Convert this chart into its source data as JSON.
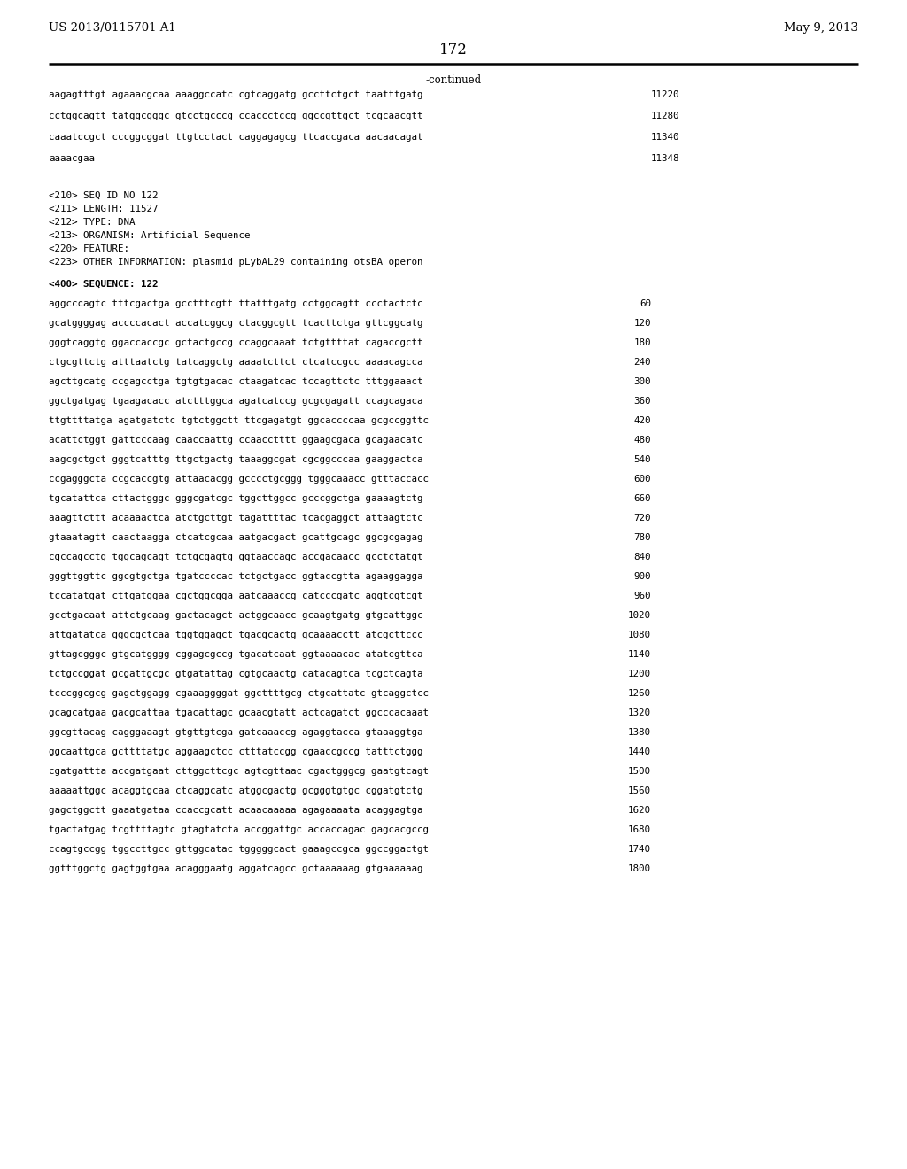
{
  "patent_number": "US 2013/0115701 A1",
  "date": "May 9, 2013",
  "page_number": "172",
  "continued_label": "-continued",
  "background_color": "#ffffff",
  "text_color": "#000000",
  "continued_lines": [
    [
      "aagagtttgt agaaacgcaa aaaggccatc cgtcaggatg gccttctgct taatttgatg",
      "11220"
    ],
    [
      "cctggcagtt tatggcgggc gtcctgcccg ccaccctccg ggccgttgct tcgcaacgtt",
      "11280"
    ],
    [
      "caaatccgct cccggcggat ttgtcctact caggagagcg ttcaccgaca aacaacagat",
      "11340"
    ],
    [
      "aaaacgaa",
      "11348"
    ]
  ],
  "metadata_lines": [
    "<210> SEQ ID NO 122",
    "<211> LENGTH: 11527",
    "<212> TYPE: DNA",
    "<213> ORGANISM: Artificial Sequence",
    "<220> FEATURE:",
    "<223> OTHER INFORMATION: plasmid pLybAL29 containing otsBA operon"
  ],
  "sequence_header": "<400> SEQUENCE: 122",
  "sequence_lines": [
    [
      "aggcccagtc tttcgactga gcctttcgtt ttatttgatg cctggcagtt ccctactctc",
      "60"
    ],
    [
      "gcatggggag accccacact accatcggcg ctacggcgtt tcacttctga gttcggcatg",
      "120"
    ],
    [
      "gggtcaggtg ggaccaccgc gctactgccg ccaggcaaat tctgttttat cagaccgctt",
      "180"
    ],
    [
      "ctgcgttctg atttaatctg tatcaggctg aaaatcttct ctcatccgcc aaaacagcca",
      "240"
    ],
    [
      "agcttgcatg ccgagcctga tgtgtgacac ctaagatcac tccagttctc tttggaaact",
      "300"
    ],
    [
      "ggctgatgag tgaagacacc atctttggca agatcatccg gcgcgagatt ccagcagaca",
      "360"
    ],
    [
      "ttgttttatga agatgatctc tgtctggctt ttcgagatgt ggcaccccaa gcgccggttc",
      "420"
    ],
    [
      "acattctggt gattcccaag caaccaattg ccaacctttt ggaagcgaca gcagaacatc",
      "480"
    ],
    [
      "aagcgctgct gggtcatttg ttgctgactg taaaggcgat cgcggcccaa gaaggactca",
      "540"
    ],
    [
      "ccgagggcta ccgcaccgtg attaacacgg gcccctgcggg tgggcaaacc gtttaccacc",
      "600"
    ],
    [
      "tgcatattca cttactgggc gggcgatcgc tggcttggcc gcccggctga gaaaagtctg",
      "660"
    ],
    [
      "aaagttcttt acaaaactca atctgcttgt tagattttac tcacgaggct attaagtctc",
      "720"
    ],
    [
      "gtaaatagtt caactaagga ctcatcgcaa aatgacgact gcattgcagc ggcgcgagag",
      "780"
    ],
    [
      "cgccagcctg tggcagcagt tctgcgagtg ggtaaccagc accgacaacc gcctctatgt",
      "840"
    ],
    [
      "gggttggttc ggcgtgctga tgatccccac tctgctgacc ggtaccgtta agaaggagga",
      "900"
    ],
    [
      "tccatatgat cttgatggaa cgctggcgga aatcaaaccg catcccgatc aggtcgtcgt",
      "960"
    ],
    [
      "gcctgacaat attctgcaag gactacagct actggcaacc gcaagtgatg gtgcattggc",
      "1020"
    ],
    [
      "attgatatca gggcgctcaa tggtggagct tgacgcactg gcaaaacctt atcgcttccc",
      "1080"
    ],
    [
      "gttagcgggc gtgcatgggg cggagcgccg tgacatcaat ggtaaaacac atatcgttca",
      "1140"
    ],
    [
      "tctgccggat gcgattgcgc gtgatattag cgtgcaactg catacagtca tcgctcagta",
      "1200"
    ],
    [
      "tcccggcgcg gagctggagg cgaaaggggat ggcttttgcg ctgcattatc gtcaggctcc",
      "1260"
    ],
    [
      "gcagcatgaa gacgcattaa tgacattagc gcaacgtatt actcagatct ggcccacaaat",
      "1320"
    ],
    [
      "ggcgttacag cagggaaagt gtgttgtcga gatcaaaccg agaggtacca gtaaaggtga",
      "1380"
    ],
    [
      "ggcaattgca gcttttatgc aggaagctcc ctttatccgg cgaaccgccg tatttctggg",
      "1440"
    ],
    [
      "cgatgattta accgatgaat cttggcttcgc agtcgttaac cgactgggcg gaatgtcagt",
      "1500"
    ],
    [
      "aaaaattggc acaggtgcaa ctcaggcatc atggcgactg gcgggtgtgc cggatgtctg",
      "1560"
    ],
    [
      "gagctggctt gaaatgataa ccaccgcatt acaacaaaaa agagaaaata acaggagtga",
      "1620"
    ],
    [
      "tgactatgag tcgttttagtc gtagtatcta accggattgc accaccagac gagcacgccg",
      "1680"
    ],
    [
      "ccagtgccgg tggccttgcc gttggcatac tgggggcact gaaagccgca ggccggactgt",
      "1740"
    ],
    [
      "ggtttggctg gagtggtgaa acagggaatg aggatcagcc gctaaaaaag gtgaaaaaag",
      "1800"
    ]
  ]
}
